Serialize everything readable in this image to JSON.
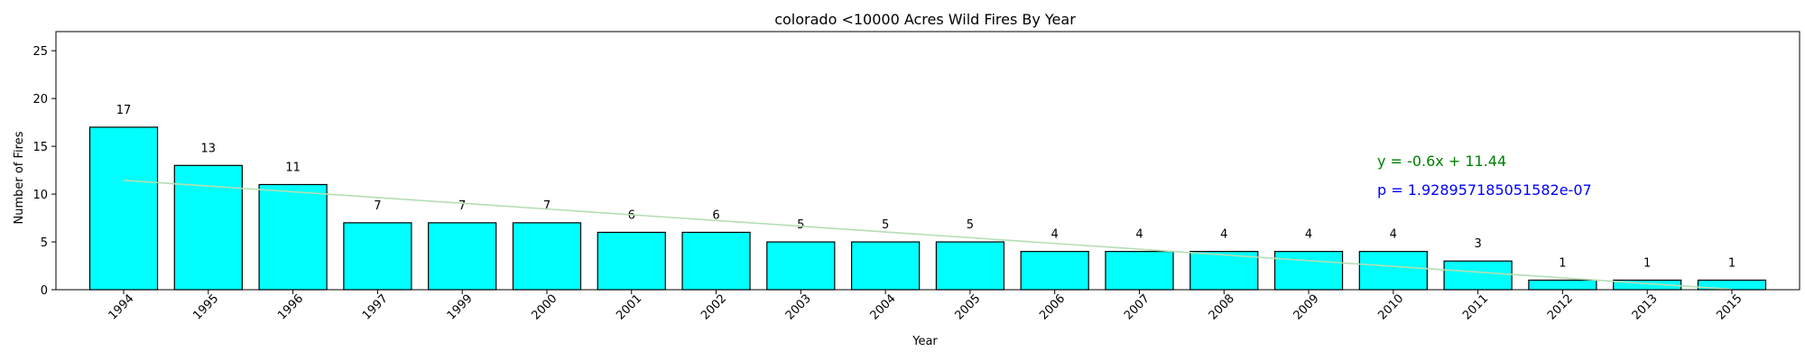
{
  "chart_data": {
    "type": "bar",
    "title": "colorado <10000 Acres Wild Fires By Year",
    "xlabel": "Year",
    "ylabel": "Number of Fires",
    "categories": [
      "1994",
      "1995",
      "1996",
      "1997",
      "1999",
      "2000",
      "2001",
      "2002",
      "2003",
      "2004",
      "2005",
      "2006",
      "2007",
      "2008",
      "2009",
      "2010",
      "2011",
      "2012",
      "2013",
      "2015"
    ],
    "values": [
      17,
      13,
      11,
      7,
      7,
      7,
      6,
      6,
      5,
      5,
      5,
      4,
      4,
      4,
      4,
      4,
      3,
      1,
      1,
      1
    ],
    "ylim": [
      0,
      27
    ],
    "yticks": [
      0,
      5,
      10,
      15,
      20,
      25
    ],
    "grid": false,
    "bar_color": "#00ffff",
    "bar_edge_color": "#000000",
    "trendline": {
      "slope": -0.6,
      "intercept": 11.44,
      "color": "#b3deb3",
      "equation_text": "y = -0.6x + 11.44",
      "equation_color": "#008000",
      "p_text": "p = 1.928957185051582e-07",
      "p_color": "#0000ff"
    }
  }
}
